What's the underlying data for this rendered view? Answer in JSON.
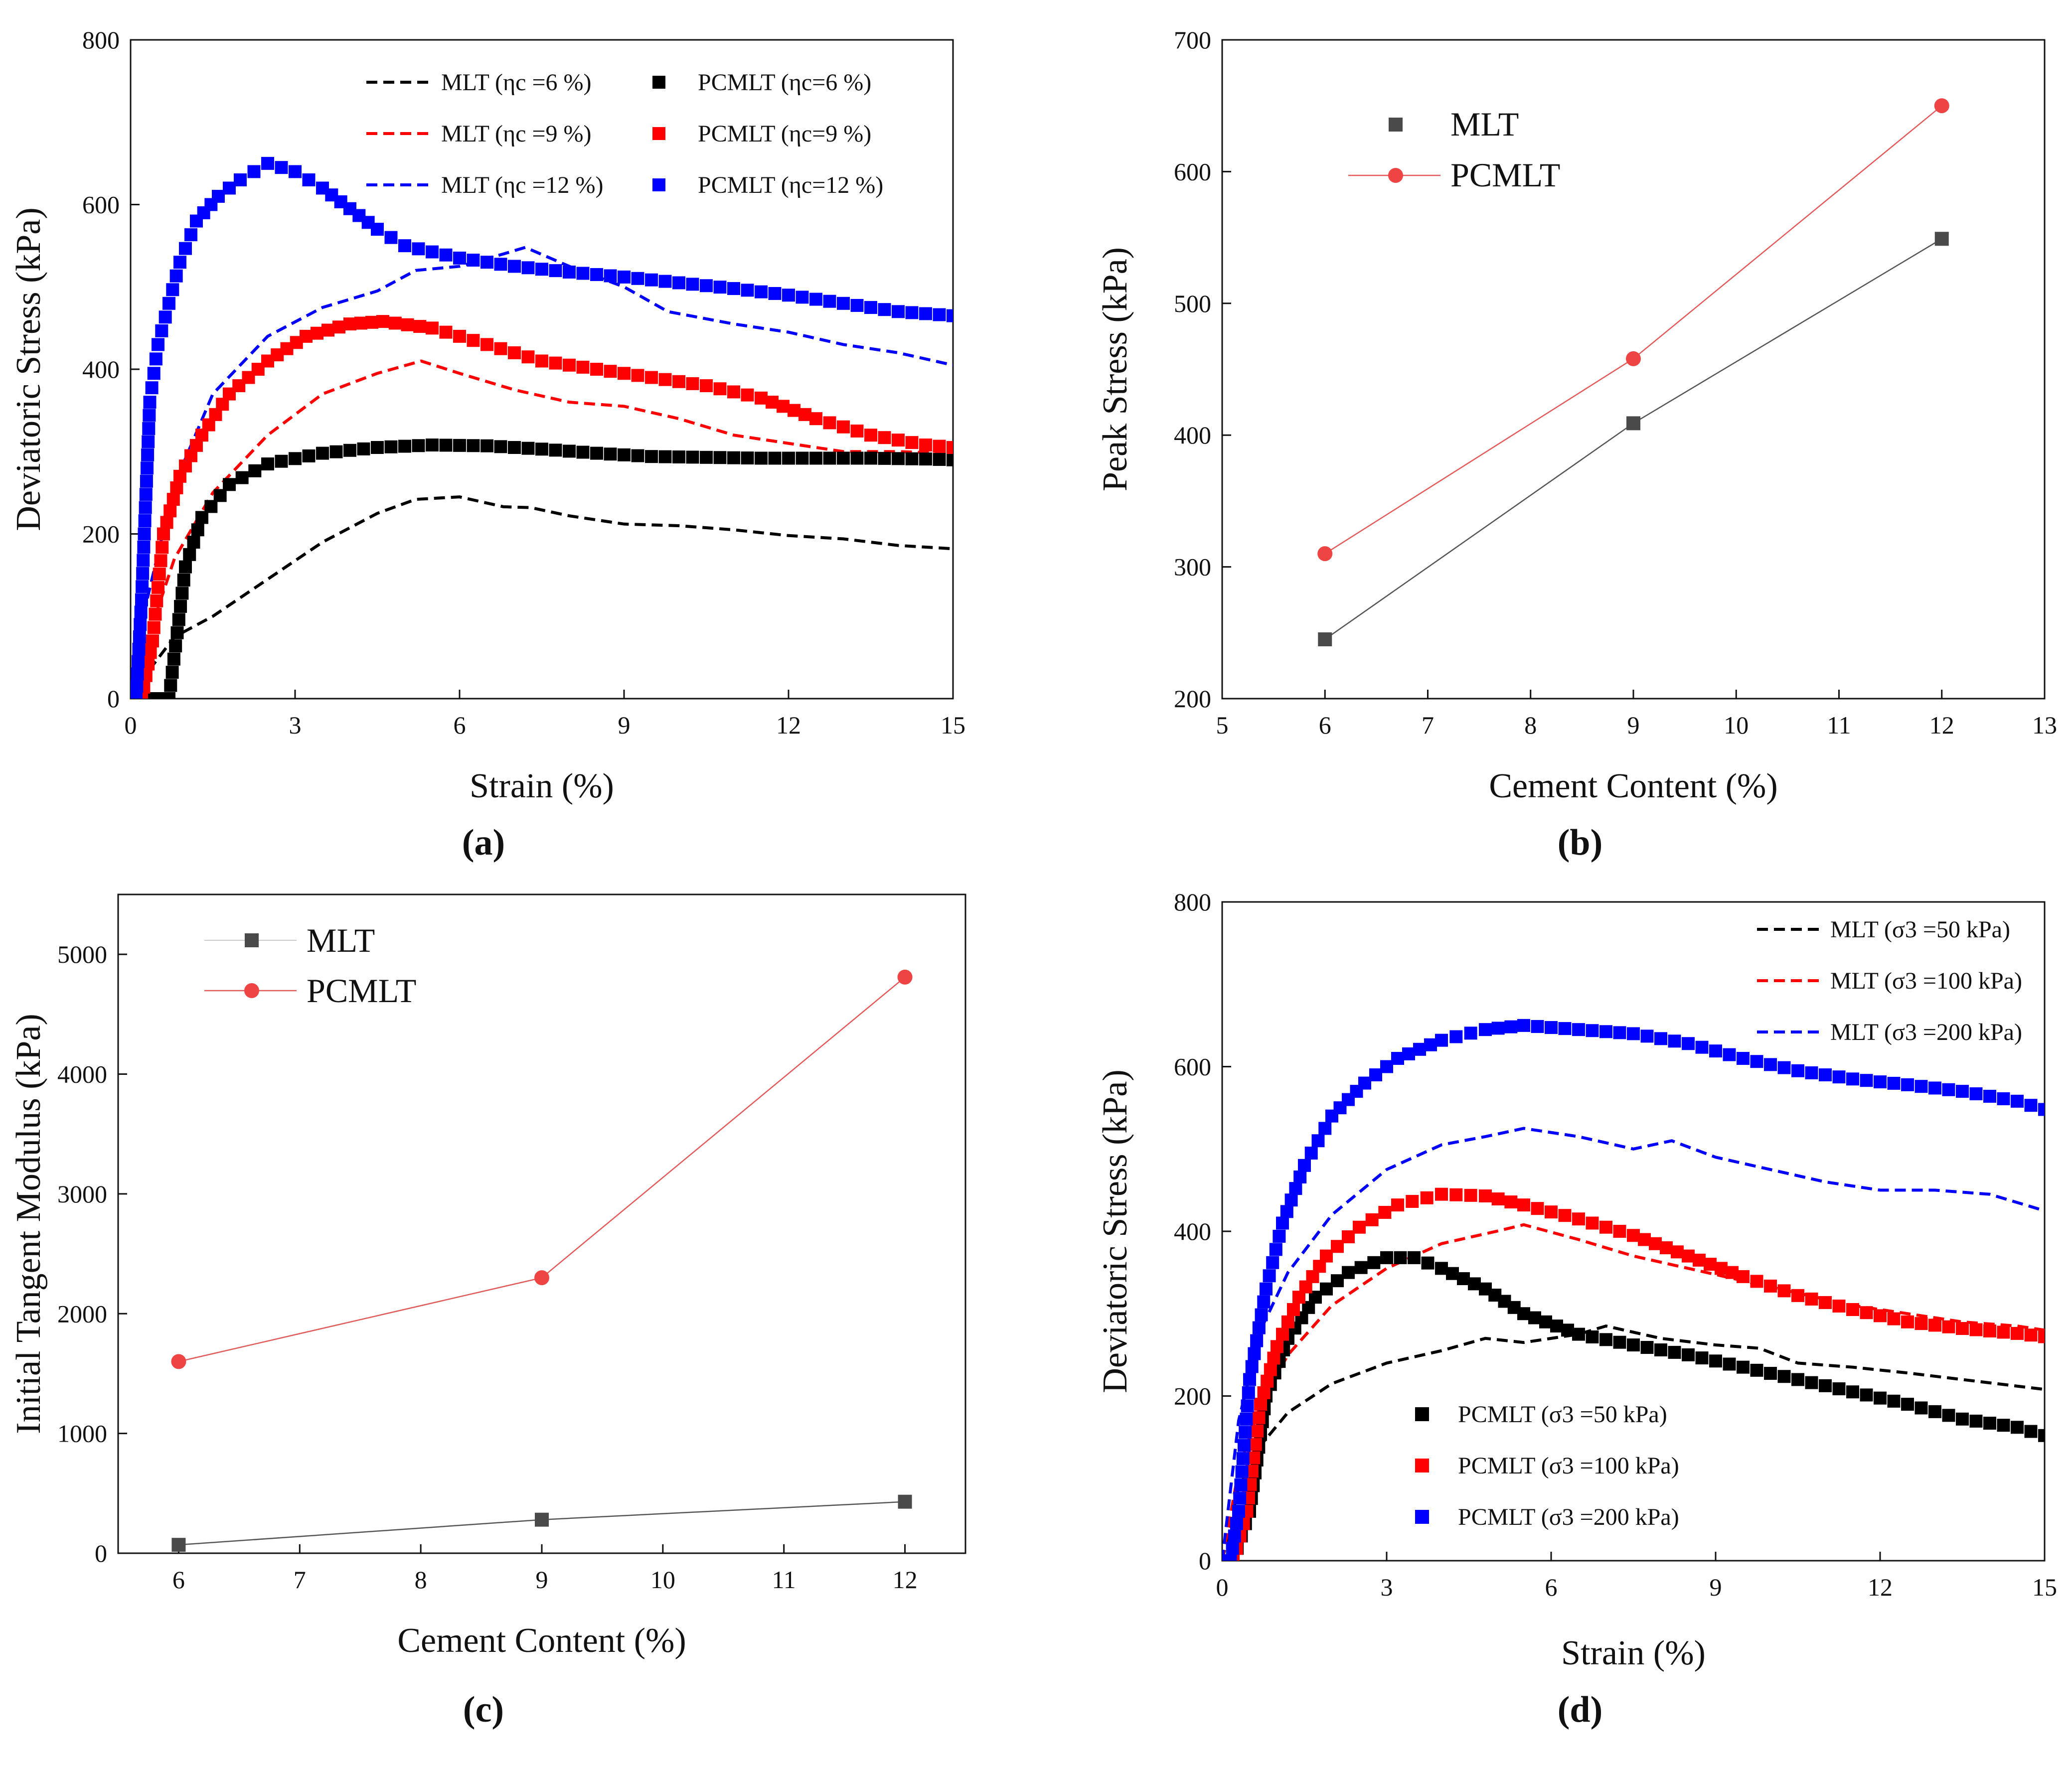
{
  "chart_data": [
    {
      "id": "a",
      "type": "line",
      "caption": "(a)",
      "xlabel": "Strain (%)",
      "ylabel": "Deviatoric Stress (kPa)",
      "xlim": [
        0,
        15
      ],
      "ylim": [
        0,
        800
      ],
      "xticks": [
        "0",
        "3",
        "6",
        "9",
        "12",
        "15"
      ],
      "yticks": [
        "0",
        "200",
        "400",
        "600",
        "800"
      ],
      "legend_placement": "top-right",
      "legend": [
        {
          "label": "MLT (ηc =6 %)",
          "color": "#000000",
          "style": "dashed"
        },
        {
          "label": "PCMLT (ηc=6 %)",
          "color": "#000000",
          "style": "marker"
        },
        {
          "label": "MLT (ηc =9 %)",
          "color": "#ff0000",
          "style": "dashed"
        },
        {
          "label": "PCMLT (ηc=9 %)",
          "color": "#ff0000",
          "style": "marker"
        },
        {
          "label": "MLT (ηc =12 %)",
          "color": "#0000ff",
          "style": "dashed"
        },
        {
          "label": "PCMLT (ηc=12 %)",
          "color": "#0000ff",
          "style": "marker"
        }
      ],
      "series": [
        {
          "name": "MLT (ηc =6 %)",
          "kind": "dashed",
          "color": "#000000",
          "x": [
            0,
            0.4,
            0.8,
            1.5,
            2.5,
            3.5,
            4.5,
            5.2,
            6.0,
            6.8,
            7.3,
            8.0,
            9.0,
            10.0,
            11.0,
            12.0,
            13.0,
            14.0,
            15.0
          ],
          "y": [
            0,
            40,
            75,
            100,
            145,
            190,
            225,
            242,
            245,
            233,
            232,
            222,
            212,
            210,
            205,
            198,
            194,
            186,
            182
          ]
        },
        {
          "name": "MLT (ηc =9 %)",
          "kind": "dashed",
          "color": "#ff0000",
          "x": [
            0,
            0.4,
            0.8,
            1.5,
            2.5,
            3.5,
            4.5,
            5.3,
            6.0,
            7.0,
            8.0,
            9.0,
            10.0,
            11.0,
            12.0,
            13.0,
            14.0,
            15.0
          ],
          "y": [
            0,
            90,
            170,
            250,
            320,
            370,
            395,
            410,
            395,
            375,
            360,
            355,
            340,
            320,
            310,
            300,
            300,
            298
          ]
        },
        {
          "name": "MLT (ηc =12 %)",
          "kind": "dashed",
          "color": "#0000ff",
          "x": [
            0,
            0.3,
            0.8,
            1.5,
            2.5,
            3.5,
            4.5,
            5.2,
            6.0,
            6.8,
            7.2,
            8.0,
            9.0,
            9.8,
            10.2,
            11.0,
            12.0,
            13.0,
            14.0,
            15.0
          ],
          "y": [
            0,
            120,
            260,
            370,
            440,
            475,
            495,
            520,
            525,
            540,
            548,
            525,
            500,
            470,
            465,
            455,
            445,
            430,
            420,
            405
          ]
        },
        {
          "name": "PCMLT (ηc=6 %)",
          "kind": "marker",
          "color": "#000000",
          "x": [
            0,
            0.3,
            0.7,
            1.0,
            1.3,
            1.8,
            2.5,
            3.5,
            4.5,
            5.5,
            6.5,
            7.5,
            8.5,
            9.5,
            10.5,
            11.5,
            12.5,
            13.5,
            14.5,
            15.0
          ],
          "y": [
            0,
            0,
            0,
            160,
            220,
            260,
            285,
            298,
            305,
            308,
            307,
            303,
            298,
            294,
            293,
            292,
            292,
            292,
            291,
            290
          ]
        },
        {
          "name": "PCMLT (ηc=9 %)",
          "kind": "marker",
          "color": "#ff0000",
          "x": [
            0,
            0.2,
            0.4,
            0.6,
            0.9,
            1.3,
            1.8,
            2.5,
            3.2,
            4.0,
            4.6,
            5.5,
            6.5,
            7.5,
            8.5,
            9.5,
            10.5,
            11.5,
            12.5,
            13.5,
            14.5,
            15.0
          ],
          "y": [
            0,
            0,
            70,
            200,
            270,
            320,
            370,
            410,
            440,
            455,
            458,
            450,
            430,
            410,
            400,
            390,
            380,
            365,
            340,
            320,
            308,
            305
          ]
        },
        {
          "name": "PCMLT (ηc=12 %)",
          "kind": "marker",
          "color": "#0000ff",
          "x": [
            0,
            0.1,
            0.2,
            0.35,
            0.5,
            0.7,
            0.9,
            1.2,
            1.6,
            2.0,
            2.5,
            3.0,
            3.5,
            4.0,
            4.5,
            5.0,
            6.0,
            7.0,
            8.0,
            9.0,
            10.0,
            11.0,
            12.0,
            13.0,
            14.0,
            15.0
          ],
          "y": [
            0,
            0,
            120,
            360,
            430,
            480,
            530,
            580,
            610,
            630,
            650,
            640,
            620,
            595,
            570,
            550,
            535,
            525,
            518,
            512,
            505,
            498,
            490,
            480,
            470,
            465
          ]
        }
      ]
    },
    {
      "id": "b",
      "type": "line",
      "caption": "(b)",
      "xlabel": "Cement Content (%)",
      "ylabel": "Peak Stress (kPa)",
      "xlim": [
        5,
        13
      ],
      "ylim": [
        200,
        700
      ],
      "xticks": [
        "5",
        "6",
        "7",
        "8",
        "9",
        "10",
        "11",
        "12",
        "13"
      ],
      "yticks": [
        "200",
        "300",
        "400",
        "500",
        "600",
        "700"
      ],
      "legend_placement": "top-left",
      "legend": [
        {
          "label": "MLT",
          "color": "#4a4a4a",
          "style": "square"
        },
        {
          "label": "PCMLT",
          "color": "#ee4444",
          "style": "circle-line"
        }
      ],
      "series": [
        {
          "name": "MLT",
          "marker": "square",
          "color": "#4a4a4a",
          "x": [
            6,
            9,
            12
          ],
          "y": [
            245,
            409,
            549
          ]
        },
        {
          "name": "PCMLT",
          "marker": "circle",
          "color": "#ee4444",
          "x": [
            6,
            9,
            12
          ],
          "y": [
            310,
            458,
            650
          ]
        }
      ]
    },
    {
      "id": "c",
      "type": "line",
      "caption": "(c)",
      "xlabel": "Cement Content (%)",
      "ylabel": "Initial Tangent Modulus (kPa)",
      "xlim": [
        5.5,
        12.5
      ],
      "ylim": [
        0,
        5500
      ],
      "xticks": [
        "6",
        "7",
        "8",
        "9",
        "10",
        "11",
        "12"
      ],
      "yticks": [
        "0",
        "1000",
        "2000",
        "3000",
        "4000",
        "5000"
      ],
      "legend_placement": "top-left",
      "legend": [
        {
          "label": "MLT",
          "color": "#4a4a4a",
          "style": "square"
        },
        {
          "label": "PCMLT",
          "color": "#ee4444",
          "style": "circle-line"
        }
      ],
      "series": [
        {
          "name": "MLT",
          "marker": "square",
          "color": "#4a4a4a",
          "x": [
            6,
            9,
            12
          ],
          "y": [
            70,
            280,
            430
          ]
        },
        {
          "name": "PCMLT",
          "marker": "circle",
          "color": "#ee4444",
          "x": [
            6,
            9,
            12
          ],
          "y": [
            1600,
            2300,
            4810
          ]
        }
      ]
    },
    {
      "id": "d",
      "type": "line",
      "caption": "(d)",
      "xlabel": "Strain (%)",
      "ylabel": "Deviatoric Stress (kPa)",
      "xlim": [
        0,
        15
      ],
      "ylim": [
        0,
        800
      ],
      "xticks": [
        "0",
        "3",
        "6",
        "9",
        "12",
        "15"
      ],
      "yticks": [
        "0",
        "200",
        "400",
        "600",
        "800"
      ],
      "legend_placement": "top-right and bottom-center",
      "legend": [
        {
          "label": "MLT (σ3 =50 kPa)",
          "color": "#000000",
          "style": "dashed"
        },
        {
          "label": "MLT (σ3 =100 kPa)",
          "color": "#ff0000",
          "style": "dashed"
        },
        {
          "label": "MLT (σ3 =200 kPa)",
          "color": "#0000ff",
          "style": "dashed"
        },
        {
          "label": "PCMLT (σ3 =50 kPa)",
          "color": "#000000",
          "style": "marker"
        },
        {
          "label": "PCMLT (σ3 =100 kPa)",
          "color": "#ff0000",
          "style": "marker"
        },
        {
          "label": "PCMLT (σ3 =200 kPa)",
          "color": "#0000ff",
          "style": "marker"
        }
      ],
      "series": [
        {
          "name": "MLT (σ3 =50 kPa)",
          "kind": "dashed",
          "color": "#000000",
          "x": [
            0,
            0.3,
            0.7,
            1.2,
            2.0,
            3.0,
            4.0,
            4.8,
            5.5,
            6.5,
            7.0,
            8.0,
            9.0,
            9.8,
            10.5,
            11.5,
            12.5,
            13.5,
            15.0
          ],
          "y": [
            0,
            90,
            140,
            180,
            215,
            240,
            255,
            270,
            265,
            275,
            285,
            270,
            262,
            258,
            240,
            235,
            228,
            220,
            208
          ]
        },
        {
          "name": "MLT (σ3 =100 kPa)",
          "kind": "dashed",
          "color": "#ff0000",
          "x": [
            0,
            0.3,
            0.7,
            1.2,
            2.0,
            3.0,
            4.0,
            5.0,
            5.5,
            6.5,
            7.5,
            8.5,
            9.5,
            10.5,
            11.5,
            12.5,
            13.5,
            14.5,
            15.0
          ],
          "y": [
            0,
            110,
            190,
            250,
            310,
            355,
            385,
            400,
            408,
            390,
            370,
            355,
            340,
            325,
            310,
            300,
            290,
            285,
            280
          ]
        },
        {
          "name": "MLT (σ3 =200 kPa)",
          "kind": "dashed",
          "color": "#0000ff",
          "x": [
            0,
            0.3,
            0.7,
            1.2,
            2.0,
            3.0,
            4.0,
            4.8,
            5.5,
            6.5,
            7.5,
            8.2,
            9.0,
            10.0,
            11.0,
            12.0,
            13.0,
            14.0,
            15.0
          ],
          "y": [
            0,
            170,
            280,
            350,
            420,
            475,
            505,
            515,
            525,
            515,
            500,
            510,
            490,
            475,
            460,
            450,
            450,
            445,
            425
          ]
        },
        {
          "name": "PCMLT (σ3 =50 kPa)",
          "kind": "marker",
          "color": "#000000",
          "x": [
            0,
            0.2,
            0.5,
            0.8,
            1.2,
            1.7,
            2.3,
            3.0,
            3.5,
            4.0,
            4.8,
            5.5,
            6.5,
            7.5,
            8.5,
            9.5,
            10.5,
            11.5,
            12.5,
            13.5,
            14.5,
            15.0
          ],
          "y": [
            0,
            0,
            60,
            200,
            270,
            320,
            350,
            368,
            368,
            355,
            330,
            300,
            275,
            262,
            250,
            235,
            220,
            205,
            190,
            172,
            162,
            152
          ]
        },
        {
          "name": "PCMLT (σ3 =100 kPa)",
          "kind": "marker",
          "color": "#ff0000",
          "x": [
            0,
            0.2,
            0.45,
            0.7,
            1.0,
            1.4,
            1.9,
            2.5,
            3.2,
            4.0,
            4.8,
            5.5,
            6.5,
            7.5,
            8.5,
            9.5,
            10.5,
            11.5,
            12.5,
            13.5,
            14.5,
            15.0
          ],
          "y": [
            0,
            0,
            60,
            190,
            260,
            320,
            370,
            405,
            432,
            445,
            443,
            432,
            415,
            395,
            370,
            345,
            322,
            305,
            290,
            282,
            276,
            272
          ]
        },
        {
          "name": "PCMLT (σ3 =200 kPa)",
          "kind": "marker",
          "color": "#0000ff",
          "x": [
            0,
            0.15,
            0.3,
            0.5,
            0.8,
            1.1,
            1.5,
            2.0,
            2.6,
            3.2,
            4.0,
            4.8,
            5.5,
            6.5,
            7.5,
            8.5,
            9.5,
            10.5,
            11.5,
            12.5,
            13.5,
            14.5,
            15.0
          ],
          "y": [
            0,
            0,
            60,
            220,
            330,
            410,
            480,
            540,
            580,
            610,
            632,
            645,
            650,
            645,
            640,
            628,
            610,
            595,
            585,
            578,
            570,
            558,
            548
          ]
        }
      ]
    }
  ]
}
